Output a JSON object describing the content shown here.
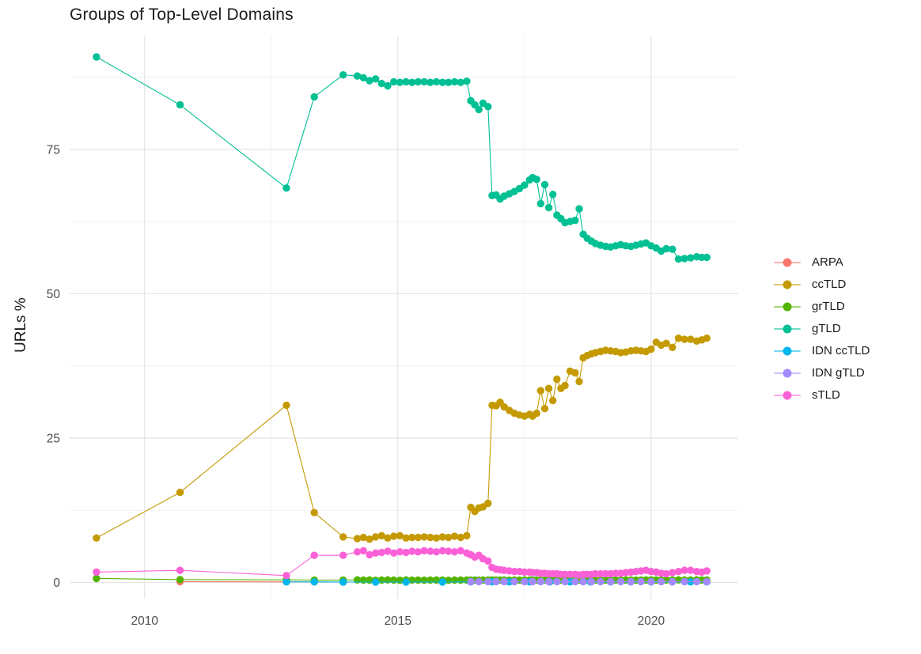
{
  "chart_data": {
    "type": "line",
    "title": "Groups of Top-Level Domains",
    "xlabel": "",
    "ylabel": "URLs %",
    "xlim": [
      2008.52,
      2021.72
    ],
    "ylim": [
      -2.8,
      94.7
    ],
    "grid": true,
    "legend_position": "right",
    "x_major_ticks": [
      2010,
      2015,
      2020
    ],
    "x_tick_labels": [
      "2010",
      "2015",
      "2020"
    ],
    "x_minor_gridlines": [
      2012.5,
      2017.5
    ],
    "y_major_ticks": [
      0,
      25,
      50,
      75
    ],
    "y_tick_labels": [
      "0",
      "25",
      "50",
      "75"
    ],
    "y_minor_gridlines": [
      12.5,
      37.5,
      62.5,
      87.5
    ],
    "colors": {
      "major_grid": "#e4e4e4",
      "minor_grid": "#f1f1f1",
      "tick_text": "#4d4d4d",
      "title_text": "#1b1b1b"
    },
    "shared_x": [
      2009.05,
      2010.7,
      2012.8,
      2013.35,
      2013.92,
      2014.2,
      2014.32,
      2014.44,
      2014.56,
      2014.68,
      2014.8,
      2014.92,
      2015.04,
      2015.16,
      2015.28,
      2015.4,
      2015.52,
      2015.64,
      2015.76,
      2015.88,
      2016.0,
      2016.12,
      2016.24,
      2016.36,
      2016.44,
      2016.52,
      2016.6,
      2016.68,
      2016.78,
      2016.86,
      2016.94,
      2017.02,
      2017.1,
      2017.2,
      2017.3,
      2017.4,
      2017.5,
      2017.6,
      2017.66,
      2017.74,
      2017.82,
      2017.9,
      2017.98,
      2018.06,
      2018.14,
      2018.22,
      2018.3,
      2018.4,
      2018.5,
      2018.58,
      2018.66,
      2018.74,
      2018.82,
      2018.9,
      2019.0,
      2019.1,
      2019.2,
      2019.3,
      2019.4,
      2019.5,
      2019.6,
      2019.7,
      2019.8,
      2019.9,
      2020.0,
      2020.1,
      2020.2,
      2020.3,
      2020.42,
      2020.54,
      2020.66,
      2020.78,
      2020.9,
      2021.0,
      2021.1
    ],
    "series": [
      {
        "name": "ARPA",
        "color": "#F8766D",
        "x": [
          2010.7,
          2012.8,
          2013.35,
          2013.92
        ],
        "y": [
          0.15,
          0.1,
          0.1,
          0.08
        ]
      },
      {
        "name": "ccTLD",
        "color": "#C49A00",
        "y": [
          7.7,
          15.6,
          30.7,
          12.1,
          7.9,
          7.6,
          7.8,
          7.5,
          7.9,
          8.1,
          7.7,
          8.0,
          8.1,
          7.7,
          7.8,
          7.8,
          7.9,
          7.8,
          7.7,
          7.9,
          7.8,
          8.0,
          7.8,
          8.1,
          13.0,
          12.3,
          12.9,
          13.1,
          13.7,
          30.7,
          30.6,
          31.2,
          30.4,
          29.8,
          29.3,
          29.0,
          28.8,
          29.1,
          28.8,
          29.3,
          33.2,
          30.1,
          33.6,
          31.5,
          35.2,
          33.6,
          34.1,
          36.6,
          36.3,
          34.8,
          38.9,
          39.3,
          39.6,
          39.8,
          40.0,
          40.2,
          40.1,
          40.0,
          39.8,
          39.9,
          40.1,
          40.2,
          40.1,
          40.0,
          40.4,
          41.6,
          41.1,
          41.4,
          40.7,
          42.3,
          42.1,
          42.1,
          41.8,
          42.0,
          42.3
        ]
      },
      {
        "name": "grTLD",
        "color": "#53B400",
        "y": [
          0.7,
          0.5,
          0.45,
          0.4,
          0.4,
          0.45,
          0.4,
          0.42,
          0.38,
          0.4,
          0.44,
          0.4,
          0.38,
          0.42,
          0.4,
          0.41,
          0.39,
          0.4,
          0.42,
          0.4,
          0.38,
          0.41,
          0.4,
          0.42,
          0.4,
          0.41,
          0.39,
          0.4,
          0.4,
          0.42,
          0.4,
          0.41,
          0.4,
          0.39,
          0.41,
          0.4,
          0.42,
          0.4,
          0.41,
          0.4,
          0.39,
          0.4,
          0.41,
          0.4,
          0.42,
          0.41,
          0.4,
          0.41,
          0.42,
          0.4,
          0.41,
          0.4,
          0.42,
          0.41,
          0.4,
          0.41,
          0.4,
          0.42,
          0.41,
          0.43,
          0.42,
          0.41,
          0.43,
          0.42,
          0.44,
          0.42,
          0.41,
          0.43,
          0.42,
          0.44,
          0.43,
          0.42,
          0.44,
          0.43,
          0.42
        ]
      },
      {
        "name": "gTLD",
        "color": "#00C094",
        "y": [
          91.0,
          82.7,
          68.3,
          84.1,
          87.9,
          87.7,
          87.4,
          86.9,
          87.2,
          86.4,
          86.0,
          86.7,
          86.6,
          86.7,
          86.6,
          86.7,
          86.7,
          86.6,
          86.7,
          86.6,
          86.6,
          86.7,
          86.6,
          86.8,
          83.4,
          82.7,
          81.9,
          83.0,
          82.4,
          67.0,
          67.1,
          66.4,
          66.9,
          67.3,
          67.7,
          68.2,
          68.8,
          69.7,
          70.1,
          69.8,
          65.6,
          68.9,
          64.9,
          67.2,
          63.6,
          63.0,
          62.3,
          62.5,
          62.7,
          64.7,
          60.3,
          59.6,
          59.1,
          58.7,
          58.4,
          58.2,
          58.1,
          58.3,
          58.5,
          58.3,
          58.2,
          58.4,
          58.6,
          58.8,
          58.3,
          57.9,
          57.4,
          57.8,
          57.7,
          56.0,
          56.1,
          56.2,
          56.4,
          56.3,
          56.3
        ]
      },
      {
        "name": "IDN ccTLD",
        "color": "#00B6EB",
        "x": [
          2012.8,
          2013.35,
          2013.92,
          2014.56,
          2015.16,
          2015.88,
          2016.44,
          2016.86,
          2017.2,
          2017.6,
          2018.0,
          2018.4,
          2018.8,
          2019.2,
          2019.6,
          2020.0,
          2020.42,
          2020.78,
          2021.1
        ],
        "y": [
          0.1,
          0.1,
          0.07,
          0.07,
          0.07,
          0.07,
          0.1,
          0.12,
          0.1,
          0.1,
          0.1,
          0.1,
          0.1,
          0.1,
          0.1,
          0.1,
          0.1,
          0.1,
          0.1
        ]
      },
      {
        "name": "IDN gTLD",
        "color": "#A58AFF",
        "x": [
          2016.44,
          2016.6,
          2016.78,
          2016.94,
          2017.1,
          2017.3,
          2017.5,
          2017.66,
          2017.82,
          2017.98,
          2018.14,
          2018.3,
          2018.5,
          2018.66,
          2018.82,
          2019.0,
          2019.2,
          2019.4,
          2019.6,
          2019.8,
          2020.0,
          2020.2,
          2020.42,
          2020.66,
          2020.9,
          2021.1
        ],
        "y": [
          0.15,
          0.14,
          0.15,
          0.15,
          0.14,
          0.15,
          0.15,
          0.14,
          0.15,
          0.15,
          0.14,
          0.15,
          0.15,
          0.14,
          0.15,
          0.15,
          0.14,
          0.15,
          0.15,
          0.14,
          0.15,
          0.15,
          0.14,
          0.15,
          0.15,
          0.15
        ]
      },
      {
        "name": "sTLD",
        "color": "#FB61D7",
        "y": [
          1.8,
          2.1,
          1.2,
          4.7,
          4.7,
          5.3,
          5.5,
          4.8,
          5.1,
          5.2,
          5.4,
          5.1,
          5.3,
          5.2,
          5.4,
          5.3,
          5.5,
          5.4,
          5.3,
          5.5,
          5.4,
          5.3,
          5.5,
          5.1,
          4.8,
          4.4,
          4.7,
          4.1,
          3.7,
          2.6,
          2.3,
          2.2,
          2.1,
          2.0,
          1.9,
          1.9,
          1.8,
          1.8,
          1.7,
          1.7,
          1.6,
          1.6,
          1.5,
          1.5,
          1.5,
          1.4,
          1.4,
          1.4,
          1.4,
          1.3,
          1.4,
          1.4,
          1.4,
          1.5,
          1.5,
          1.5,
          1.5,
          1.6,
          1.6,
          1.7,
          1.8,
          1.9,
          2.0,
          2.1,
          1.9,
          1.8,
          1.6,
          1.5,
          1.7,
          1.9,
          2.1,
          2.1,
          1.9,
          1.8,
          2.0
        ]
      }
    ]
  },
  "legend": {
    "items": [
      "ARPA",
      "ccTLD",
      "grTLD",
      "gTLD",
      "IDN ccTLD",
      "IDN gTLD",
      "sTLD"
    ]
  }
}
